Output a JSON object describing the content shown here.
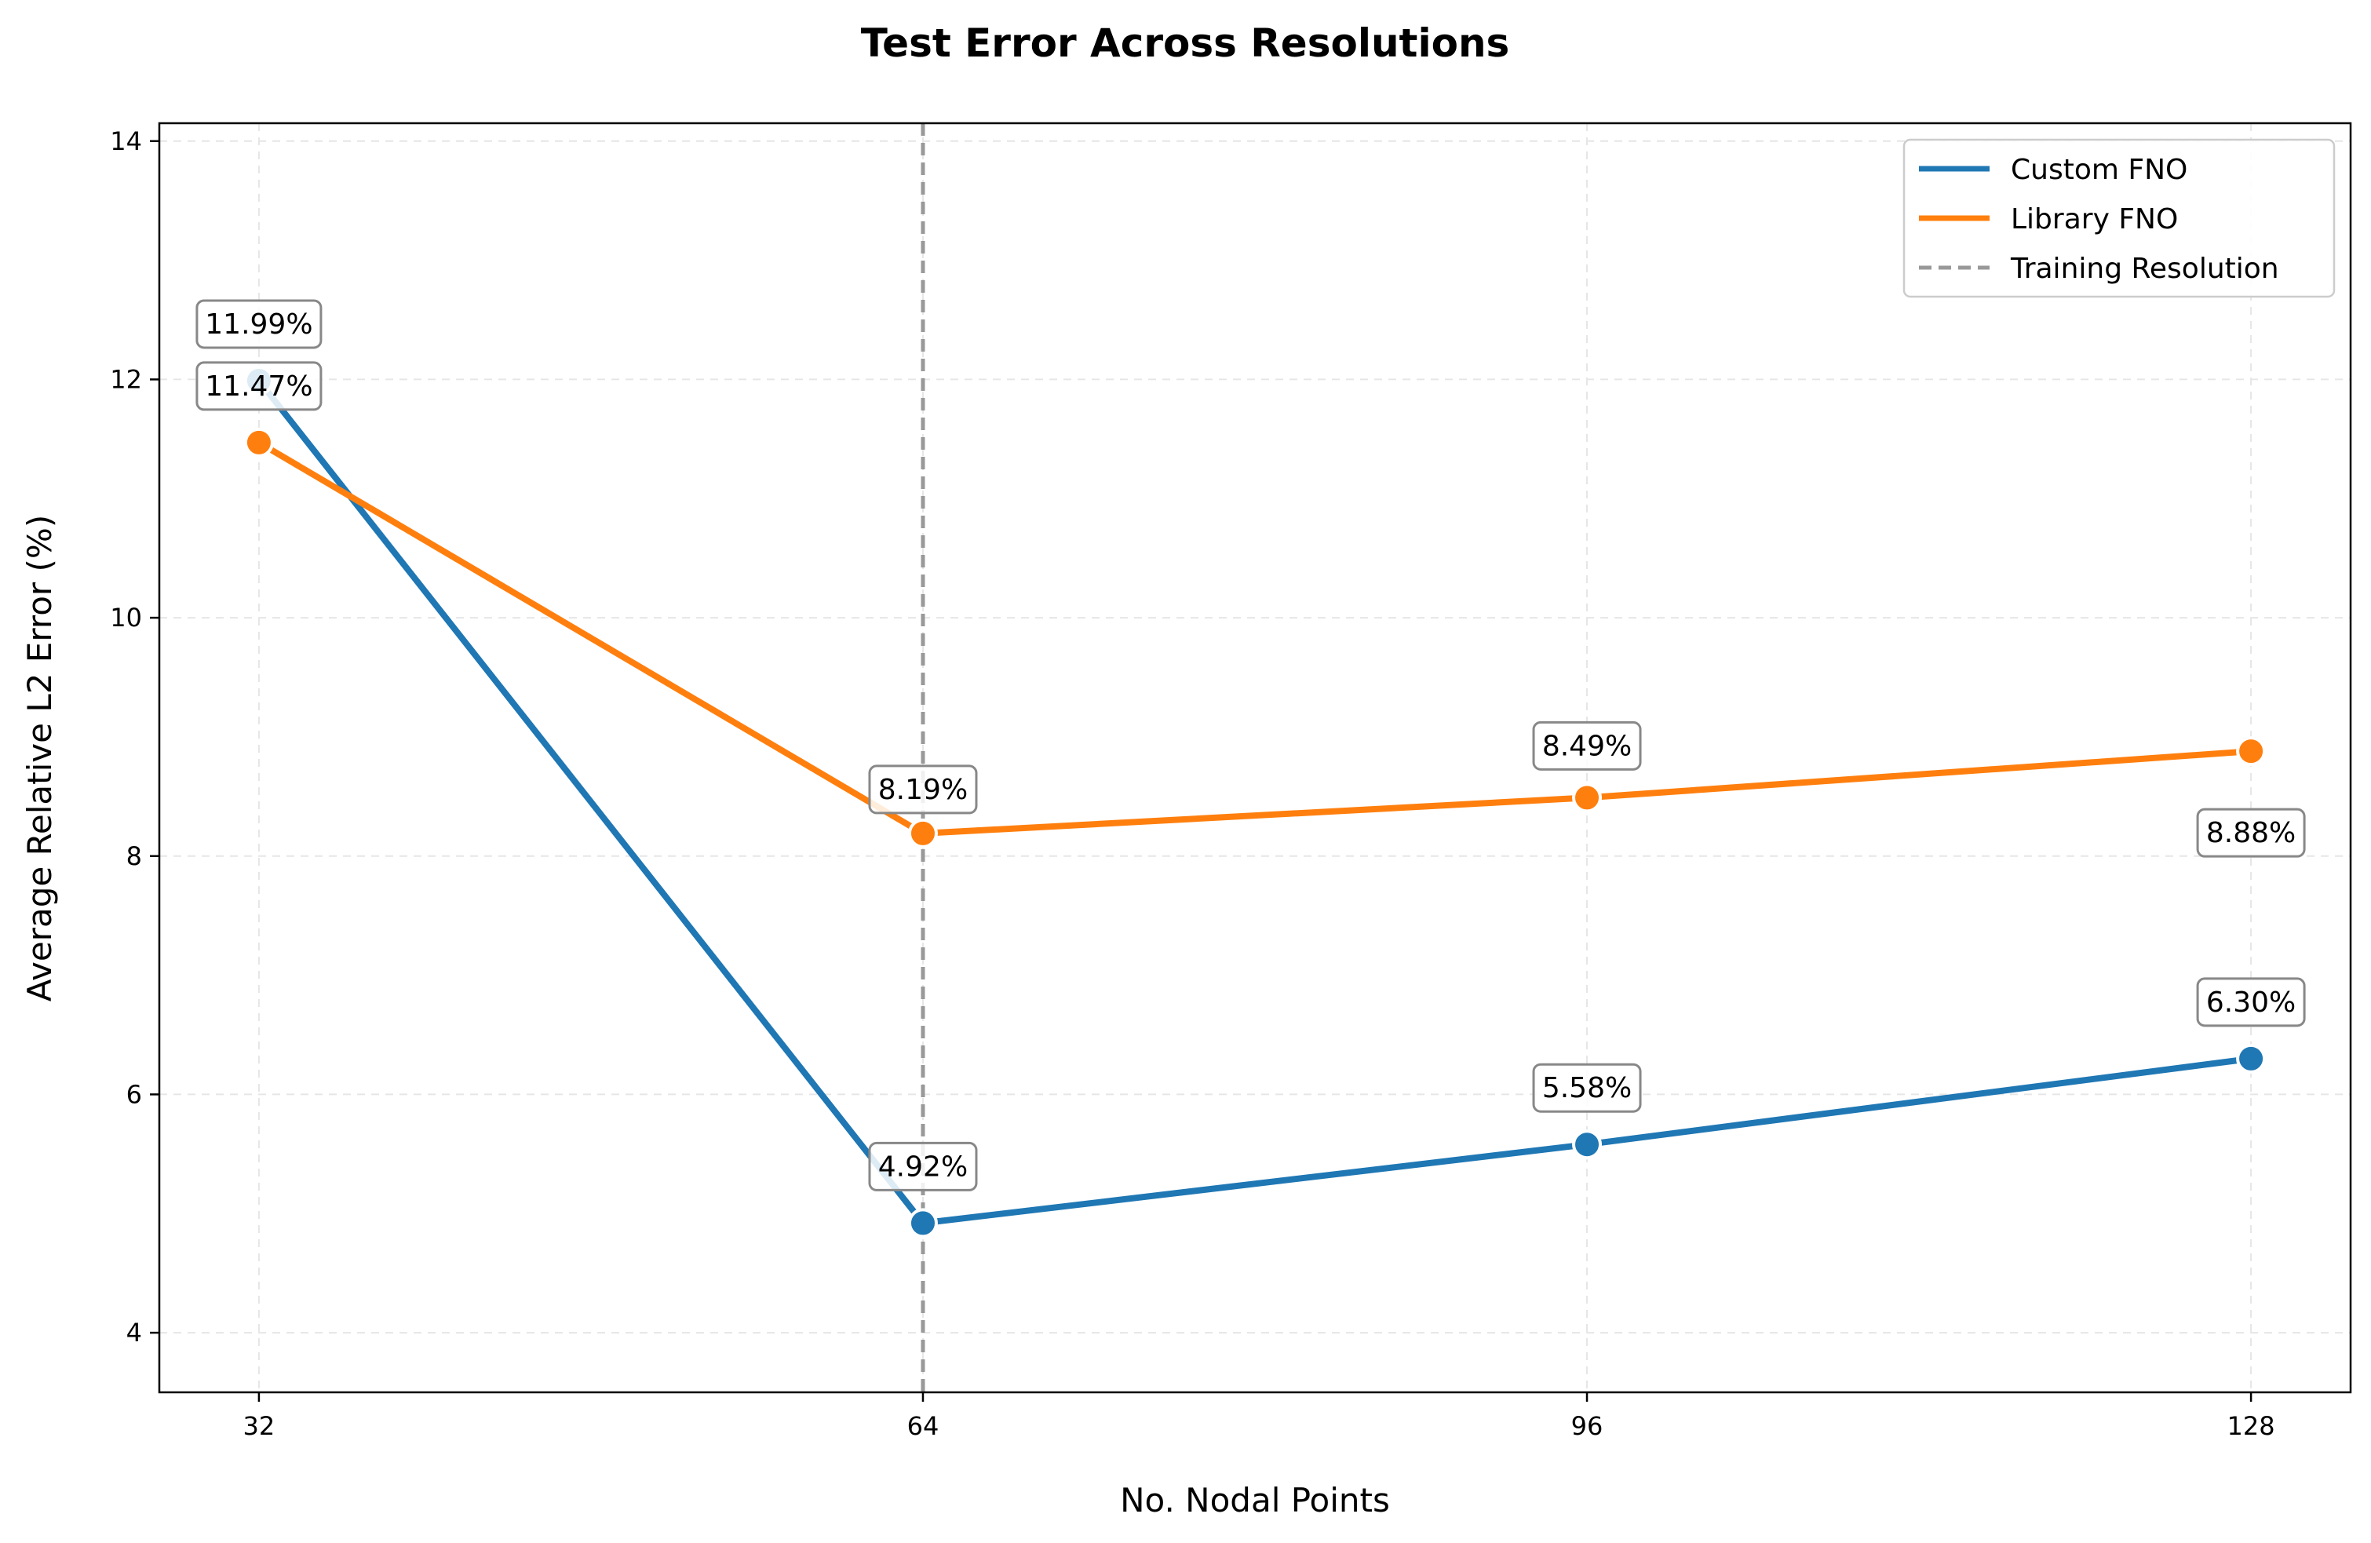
{
  "chart_data": {
    "type": "line",
    "title": "Test Error Across Resolutions",
    "xlabel": "No. Nodal Points",
    "ylabel": "Average Relative L2 Error (%)",
    "x": [
      32,
      64,
      96,
      128
    ],
    "x_ticks": [
      32,
      64,
      96,
      128
    ],
    "y_ticks": [
      4,
      6,
      8,
      10,
      12,
      14
    ],
    "xlim": [
      27.2,
      132.8
    ],
    "ylim": [
      3.5,
      14.15
    ],
    "grid": true,
    "legend_position": "top-right",
    "series": [
      {
        "name": "Custom FNO",
        "color": "#1f77b4",
        "values": [
          11.99,
          4.92,
          5.58,
          6.3
        ],
        "labels": [
          "11.99%",
          "4.92%",
          "5.58%",
          "6.30%"
        ]
      },
      {
        "name": "Library FNO",
        "color": "#ff7f0e",
        "values": [
          11.47,
          8.19,
          8.49,
          8.88
        ],
        "labels": [
          "11.47%",
          "8.19%",
          "8.49%",
          "8.88%"
        ]
      }
    ],
    "reference_line": {
      "name": "Training Resolution",
      "x": 64,
      "color": "#999999"
    }
  }
}
